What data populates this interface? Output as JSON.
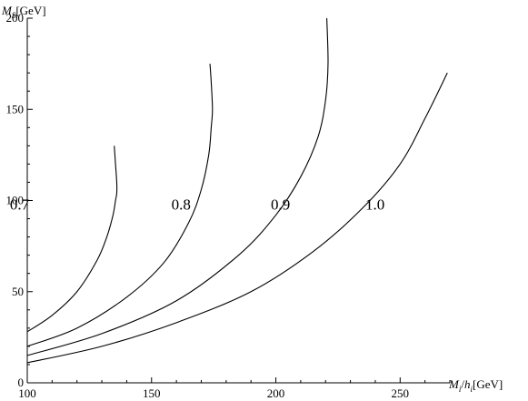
{
  "chart_data": {
    "type": "line",
    "title": "",
    "ylabel": {
      "base": "M",
      "sub": "S",
      "unit": "[GeV]"
    },
    "xlabel": {
      "base1": "M",
      "sub1": "i",
      "slash": "/",
      "base2": "h",
      "sub2": "i",
      "unit": "[GeV]"
    },
    "xlim": [
      100,
      270
    ],
    "ylim": [
      0,
      200
    ],
    "xticks": [
      100,
      150,
      200,
      250
    ],
    "yticks": [
      0,
      50,
      100,
      150,
      200
    ],
    "xtick_labels": [
      "100",
      "150",
      "200",
      "250"
    ],
    "ytick_labels": [
      "0",
      "50",
      "100",
      "150",
      "200"
    ],
    "grid": false,
    "legend": "none",
    "series": [
      {
        "name": "0.7",
        "label_at": [
          93,
          98
        ],
        "points": [
          [
            100,
            28
          ],
          [
            110,
            37
          ],
          [
            120,
            50
          ],
          [
            128,
            67
          ],
          [
            132,
            80
          ],
          [
            134.5,
            92
          ],
          [
            135.5,
            100
          ],
          [
            136,
            104
          ],
          [
            136,
            110
          ],
          [
            135.5,
            120
          ],
          [
            135,
            130
          ]
        ]
      },
      {
        "name": "0.8",
        "label_at": [
          158,
          98
        ],
        "points": [
          [
            100,
            20
          ],
          [
            120,
            30
          ],
          [
            140,
            47
          ],
          [
            155,
            66
          ],
          [
            165,
            88
          ],
          [
            170,
            106
          ],
          [
            173,
            125
          ],
          [
            174,
            140
          ],
          [
            174.5,
            150
          ],
          [
            174,
            165
          ],
          [
            173.5,
            175
          ]
        ]
      },
      {
        "name": "0.9",
        "label_at": [
          198,
          98
        ],
        "points": [
          [
            100,
            15
          ],
          [
            130,
            27
          ],
          [
            160,
            45
          ],
          [
            185,
            70
          ],
          [
            200,
            92
          ],
          [
            210,
            113
          ],
          [
            217,
            135
          ],
          [
            220,
            155
          ],
          [
            221,
            175
          ],
          [
            220.5,
            200
          ]
        ]
      },
      {
        "name": "1.0",
        "label_at": [
          236,
          98
        ],
        "points": [
          [
            100,
            11
          ],
          [
            130,
            20
          ],
          [
            160,
            33
          ],
          [
            190,
            50
          ],
          [
            215,
            72
          ],
          [
            235,
            96
          ],
          [
            250,
            120
          ],
          [
            260,
            145
          ],
          [
            269,
            170
          ]
        ]
      }
    ]
  }
}
